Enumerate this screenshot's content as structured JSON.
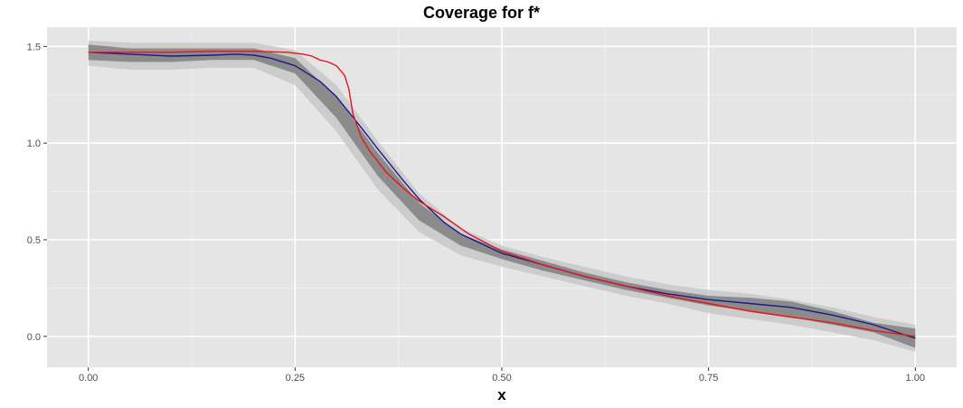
{
  "chart_data": {
    "type": "line",
    "title": "Coverage for f*",
    "xlabel": "x",
    "ylabel": "",
    "xlim": [
      -0.05,
      1.05
    ],
    "ylim": [
      -0.16,
      1.6
    ],
    "x_ticks": [
      0.0,
      0.25,
      0.5,
      0.75,
      1.0
    ],
    "x_tick_labels": [
      "0.00",
      "0.25",
      "0.50",
      "0.75",
      "1.00"
    ],
    "y_ticks": [
      0.0,
      0.5,
      1.0,
      1.5
    ],
    "y_tick_labels": [
      "0.0",
      "0.5",
      "1.0",
      "1.5"
    ],
    "grid": true,
    "colors": {
      "panel": "#e5e5e5",
      "grid_major": "#ffffff",
      "outer_band": "#c8c8c8",
      "inner_band": "#7a7a7a",
      "estimate_line": "#1a1a8c",
      "true_line": "#e8141a"
    },
    "bands": [
      {
        "level": "outer",
        "x": [
          0.0,
          0.05,
          0.1,
          0.15,
          0.2,
          0.25,
          0.3,
          0.35,
          0.4,
          0.45,
          0.5,
          0.55,
          0.6,
          0.65,
          0.7,
          0.75,
          0.8,
          0.85,
          0.9,
          0.95,
          1.0
        ],
        "lower": [
          1.4,
          1.38,
          1.38,
          1.39,
          1.39,
          1.3,
          1.06,
          0.76,
          0.54,
          0.42,
          0.36,
          0.31,
          0.26,
          0.21,
          0.17,
          0.12,
          0.09,
          0.06,
          0.02,
          -0.02,
          -0.08
        ],
        "upper": [
          1.53,
          1.52,
          1.52,
          1.52,
          1.52,
          1.48,
          1.3,
          1.01,
          0.74,
          0.56,
          0.47,
          0.41,
          0.36,
          0.31,
          0.27,
          0.24,
          0.22,
          0.19,
          0.15,
          0.1,
          0.06
        ]
      },
      {
        "level": "inner",
        "x": [
          0.0,
          0.05,
          0.1,
          0.15,
          0.2,
          0.25,
          0.3,
          0.35,
          0.4,
          0.45,
          0.5,
          0.55,
          0.6,
          0.65,
          0.7,
          0.75,
          0.8,
          0.85,
          0.9,
          0.95,
          1.0
        ],
        "lower": [
          1.43,
          1.42,
          1.42,
          1.43,
          1.43,
          1.36,
          1.13,
          0.83,
          0.6,
          0.47,
          0.4,
          0.34,
          0.29,
          0.24,
          0.2,
          0.16,
          0.13,
          0.1,
          0.06,
          0.02,
          -0.06
        ],
        "upper": [
          1.51,
          1.49,
          1.49,
          1.49,
          1.49,
          1.44,
          1.24,
          0.95,
          0.69,
          0.53,
          0.45,
          0.39,
          0.33,
          0.28,
          0.24,
          0.21,
          0.2,
          0.18,
          0.13,
          0.07,
          0.04
        ]
      }
    ],
    "series": [
      {
        "color": "#1a1a8c",
        "x": [
          0.0,
          0.05,
          0.1,
          0.15,
          0.18,
          0.2,
          0.22,
          0.25,
          0.28,
          0.3,
          0.33,
          0.35,
          0.38,
          0.4,
          0.43,
          0.45,
          0.5,
          0.55,
          0.6,
          0.65,
          0.7,
          0.75,
          0.8,
          0.85,
          0.9,
          0.95,
          1.0
        ],
        "y": [
          1.47,
          1.46,
          1.45,
          1.455,
          1.46,
          1.455,
          1.44,
          1.4,
          1.32,
          1.24,
          1.08,
          0.97,
          0.81,
          0.71,
          0.59,
          0.53,
          0.43,
          0.37,
          0.31,
          0.26,
          0.22,
          0.19,
          0.17,
          0.15,
          0.11,
          0.06,
          -0.01
        ]
      },
      {
        "color": "#e8141a",
        "x": [
          0.0,
          0.05,
          0.1,
          0.15,
          0.2,
          0.24,
          0.26,
          0.27,
          0.28,
          0.29,
          0.3,
          0.31,
          0.315,
          0.32,
          0.33,
          0.34,
          0.36,
          0.38,
          0.4,
          0.43,
          0.46,
          0.5,
          0.55,
          0.6,
          0.65,
          0.7,
          0.75,
          0.8,
          0.85,
          0.9,
          0.95,
          1.0
        ],
        "y": [
          1.47,
          1.47,
          1.47,
          1.475,
          1.475,
          1.47,
          1.46,
          1.45,
          1.43,
          1.42,
          1.4,
          1.35,
          1.28,
          1.15,
          1.03,
          0.96,
          0.85,
          0.77,
          0.7,
          0.62,
          0.53,
          0.44,
          0.37,
          0.31,
          0.26,
          0.21,
          0.17,
          0.13,
          0.1,
          0.07,
          0.03,
          0.0
        ]
      }
    ]
  }
}
